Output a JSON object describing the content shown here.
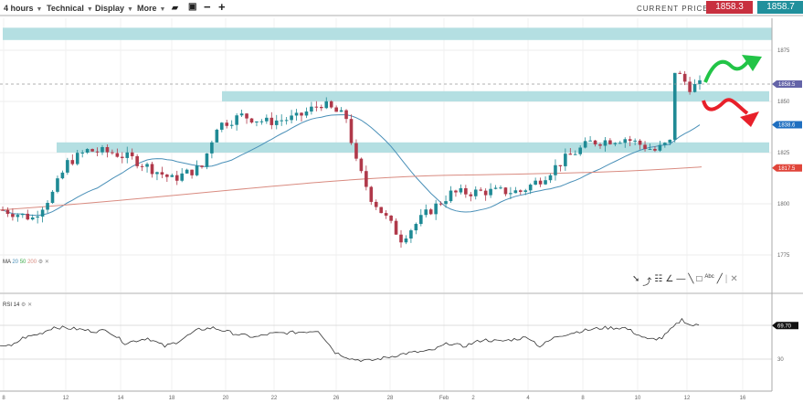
{
  "toolbar": {
    "timeframe": "4 hours",
    "technical": "Technical",
    "display": "Display",
    "more": "More",
    "icons": [
      "folder-open-icon",
      "save-icon",
      "zoom-out-icon",
      "zoom-in-icon"
    ]
  },
  "prices": {
    "label": "CURRENT PRICE:",
    "bid": "1858.3",
    "ask": "1858.7"
  },
  "colors": {
    "up": "#1f8a95",
    "down": "#b0394a",
    "zone": "#b4dfe2",
    "ma20": "#4a90b8",
    "ma200": "#d98b80",
    "arrow_up": "#22c447",
    "arrow_down": "#e8202a"
  },
  "price_axis": {
    "ticks": [
      "1875",
      "1850",
      "1825",
      "1800",
      "1775"
    ],
    "badges": {
      "last": "1858.5",
      "ma20": "1838.6",
      "ma200": "1817.5"
    }
  },
  "x_axis": {
    "ticks": [
      "8",
      "12",
      "14",
      "18",
      "20",
      "22",
      "26",
      "28",
      "Feb",
      "2",
      "4",
      "8",
      "10",
      "12",
      "16"
    ]
  },
  "indicators": {
    "ma": {
      "name": "MA",
      "periods": [
        "20",
        "50",
        "200"
      ]
    },
    "rsi": {
      "name": "RSI 14",
      "tick": "30",
      "value": "69.70"
    }
  },
  "zones": [
    [
      1880,
      1886
    ],
    [
      1850,
      1855
    ],
    [
      1825,
      1830
    ]
  ],
  "price_keypoints": [
    [
      0,
      1797
    ],
    [
      6,
      1793
    ],
    [
      10,
      1805
    ],
    [
      13,
      1820
    ],
    [
      17,
      1826
    ],
    [
      22,
      1825
    ],
    [
      26,
      1822
    ],
    [
      30,
      1817
    ],
    [
      34,
      1812
    ],
    [
      40,
      1818
    ],
    [
      43,
      1838
    ],
    [
      48,
      1843
    ],
    [
      53,
      1840
    ],
    [
      59,
      1842
    ],
    [
      64,
      1849
    ],
    [
      69,
      1842
    ],
    [
      71,
      1820
    ],
    [
      74,
      1803
    ],
    [
      80,
      1783
    ],
    [
      85,
      1795
    ],
    [
      90,
      1805
    ],
    [
      97,
      1806
    ],
    [
      104,
      1806
    ],
    [
      108,
      1812
    ],
    [
      113,
      1822
    ],
    [
      118,
      1830
    ],
    [
      125,
      1832
    ],
    [
      131,
      1826
    ],
    [
      134,
      1830
    ],
    [
      135,
      1865
    ],
    [
      138,
      1857
    ],
    [
      140,
      1858
    ]
  ],
  "rsi_keypoints": [
    [
      0,
      47
    ],
    [
      4,
      45
    ],
    [
      8,
      55
    ],
    [
      14,
      60
    ],
    [
      19,
      68
    ],
    [
      26,
      66
    ],
    [
      33,
      63
    ],
    [
      38,
      64
    ],
    [
      44,
      49
    ],
    [
      52,
      55
    ],
    [
      58,
      45
    ],
    [
      62,
      50
    ],
    [
      70,
      65
    ],
    [
      75,
      67
    ],
    [
      84,
      59
    ],
    [
      90,
      56
    ],
    [
      95,
      60
    ],
    [
      106,
      62
    ],
    [
      112,
      64
    ],
    [
      118,
      38
    ],
    [
      124,
      30
    ],
    [
      130,
      28
    ],
    [
      136,
      32
    ],
    [
      143,
      37
    ],
    [
      152,
      40
    ],
    [
      158,
      49
    ],
    [
      163,
      45
    ],
    [
      170,
      53
    ],
    [
      176,
      51
    ],
    [
      186,
      56
    ],
    [
      190,
      45
    ],
    [
      196,
      57
    ],
    [
      204,
      63
    ],
    [
      212,
      67
    ],
    [
      220,
      67
    ],
    [
      224,
      60
    ],
    [
      228,
      53
    ],
    [
      233,
      55
    ],
    [
      240,
      77
    ],
    [
      243,
      70
    ],
    [
      246,
      70
    ]
  ]
}
